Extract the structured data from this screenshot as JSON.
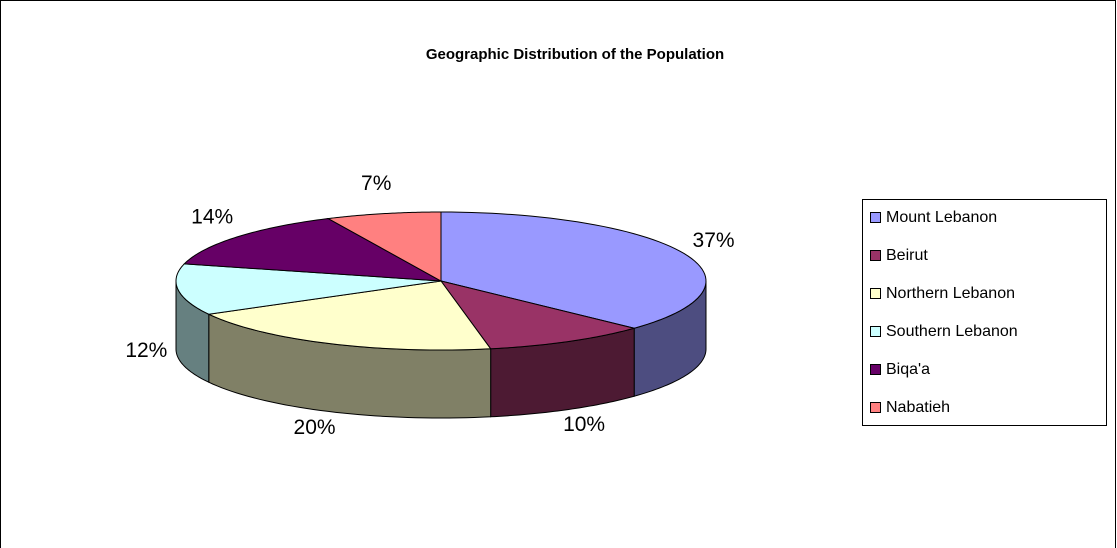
{
  "chart_data": {
    "type": "pie",
    "title": "Geographic Distribution of the Population",
    "categories": [
      "Mount Lebanon",
      "Beirut",
      "Northern Lebanon",
      "Southern Lebanon",
      "Biqa'a",
      "Nabatieh"
    ],
    "values": [
      37,
      10,
      20,
      12,
      14,
      7
    ],
    "value_labels": [
      "37%",
      "10%",
      "20%",
      "12%",
      "14%",
      "7%"
    ],
    "colors": [
      "#9999ff",
      "#993366",
      "#ffffcc",
      "#ccffff",
      "#660066",
      "#ff8080"
    ],
    "legend": "right"
  }
}
